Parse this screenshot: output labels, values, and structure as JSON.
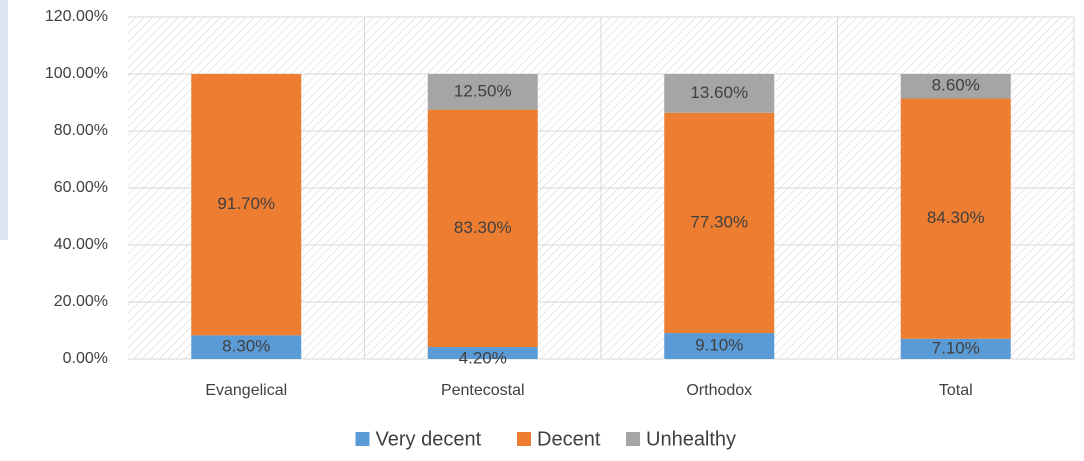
{
  "chart_data": {
    "type": "stacked_bar",
    "categories": [
      "Evangelical",
      "Pentecostal",
      "Orthodox",
      "Total"
    ],
    "series": [
      {
        "name": "Very decent",
        "color": "#5b9bd5",
        "values": [
          8.3,
          4.2,
          9.1,
          7.1
        ],
        "value_labels": [
          "8.30%",
          "4.20%",
          "9.10%",
          "7.10%"
        ]
      },
      {
        "name": "Decent",
        "color": "#ed7d31",
        "values": [
          91.7,
          83.3,
          77.3,
          84.3
        ],
        "value_labels": [
          "91.70%",
          "83.30%",
          "77.30%",
          "84.30%"
        ]
      },
      {
        "name": "Unhealthy",
        "color": "#a5a5a5",
        "values": [
          null,
          12.5,
          13.6,
          8.6
        ],
        "value_labels": [
          null,
          "12.50%",
          "13.60%",
          "8.60%"
        ]
      }
    ],
    "ylim": [
      0,
      120
    ],
    "yticks": [
      {
        "value": 0,
        "label": "0.00%"
      },
      {
        "value": 20,
        "label": "20.00%"
      },
      {
        "value": 40,
        "label": "40.00%"
      },
      {
        "value": 60,
        "label": "60.00%"
      },
      {
        "value": 80,
        "label": "80.00%"
      },
      {
        "value": 100,
        "label": "100.00%"
      },
      {
        "value": 120,
        "label": "120.00%"
      }
    ],
    "grid": true,
    "legend": "bottom"
  }
}
